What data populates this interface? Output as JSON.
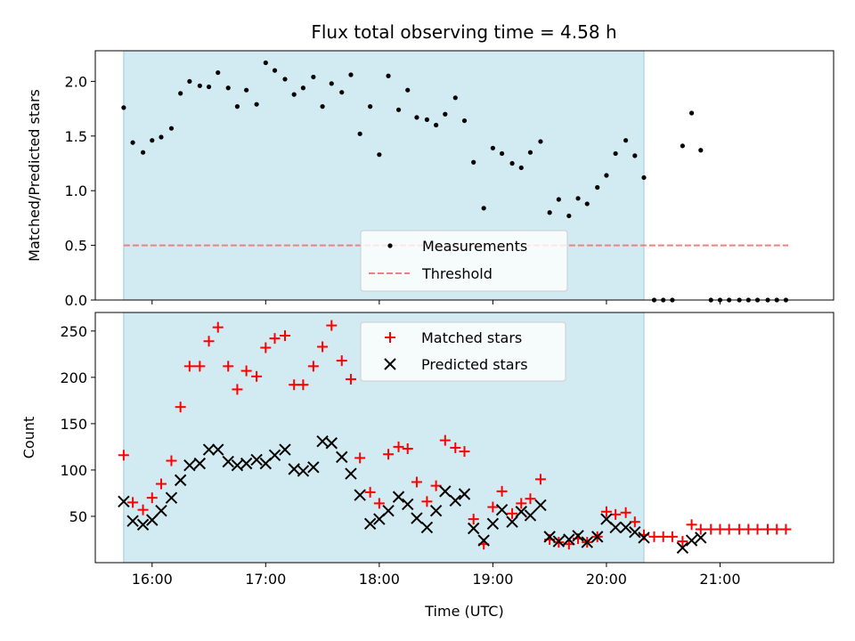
{
  "chart_data": {
    "title": "Flux total observing time = 4.58 h",
    "time_unit": "hours (UTC)",
    "observing_window": {
      "start": 15.75,
      "end": 20.33,
      "color": "#add8e6"
    },
    "top": {
      "type": "scatter",
      "ylabel": "Matched/Predicted stars",
      "ylim": [
        0,
        2.28
      ],
      "yticks": [
        "0.0",
        "0.5",
        "1.0",
        "1.5",
        "2.0"
      ],
      "ytick_values": [
        0,
        0.5,
        1.0,
        1.5,
        2.0
      ],
      "threshold": {
        "name": "Threshold",
        "value": 0.5,
        "x_range": [
          15.75,
          21.6
        ],
        "color": "#f08080"
      },
      "legend": {
        "placement": "lower center",
        "entries": [
          "Measurements",
          "Threshold"
        ]
      },
      "series": [
        {
          "name": "Measurements",
          "color": "#000000",
          "x": [
            15.75,
            15.83,
            15.92,
            16.0,
            16.08,
            16.17,
            16.25,
            16.33,
            16.42,
            16.5,
            16.58,
            16.67,
            16.75,
            16.83,
            16.92,
            17.0,
            17.08,
            17.17,
            17.25,
            17.33,
            17.42,
            17.5,
            17.58,
            17.67,
            17.75,
            17.83,
            17.92,
            18.0,
            18.08,
            18.17,
            18.25,
            18.33,
            18.42,
            18.5,
            18.58,
            18.67,
            18.75,
            18.83,
            18.92,
            19.0,
            19.08,
            19.17,
            19.25,
            19.33,
            19.42,
            19.5,
            19.58,
            19.67,
            19.75,
            19.83,
            19.92,
            20.0,
            20.08,
            20.17,
            20.25,
            20.33,
            20.42,
            20.5,
            20.58,
            20.67,
            20.75,
            20.83,
            20.92,
            21.0,
            21.08,
            21.17,
            21.25,
            21.33,
            21.42,
            21.5,
            21.58
          ],
          "y": [
            1.76,
            1.44,
            1.35,
            1.46,
            1.49,
            1.57,
            1.89,
            2.0,
            1.96,
            1.95,
            2.08,
            1.94,
            1.77,
            1.92,
            1.79,
            2.17,
            2.1,
            2.02,
            1.88,
            1.94,
            2.04,
            1.77,
            1.98,
            1.9,
            2.06,
            1.52,
            1.77,
            1.33,
            2.05,
            1.74,
            1.92,
            1.67,
            1.65,
            1.6,
            1.7,
            1.85,
            1.64,
            1.26,
            0.84,
            1.39,
            1.34,
            1.25,
            1.21,
            1.35,
            1.45,
            0.8,
            0.92,
            0.77,
            0.93,
            0.88,
            1.03,
            1.14,
            1.34,
            1.46,
            1.32,
            1.12,
            0,
            0,
            0,
            1.41,
            1.71,
            1.37,
            0,
            0,
            0,
            0,
            0,
            0,
            0,
            0,
            0
          ]
        }
      ]
    },
    "bottom": {
      "type": "scatter",
      "xlabel": "Time (UTC)",
      "ylabel": "Count",
      "xlim": [
        15.5,
        22.0
      ],
      "ylim": [
        0,
        270
      ],
      "xticks": [
        "16:00",
        "17:00",
        "18:00",
        "19:00",
        "20:00",
        "21:00"
      ],
      "xtick_values": [
        16,
        17,
        18,
        19,
        20,
        21
      ],
      "yticks": [
        "50",
        "100",
        "150",
        "200",
        "250"
      ],
      "ytick_values": [
        50,
        100,
        150,
        200,
        250
      ],
      "legend": {
        "placement": "upper center",
        "entries": [
          "Matched stars",
          "Predicted stars"
        ]
      },
      "series": [
        {
          "name": "Matched stars",
          "marker": "plus",
          "color": "#ff0000",
          "x": [
            15.75,
            15.83,
            15.92,
            16.0,
            16.08,
            16.17,
            16.25,
            16.33,
            16.42,
            16.5,
            16.58,
            16.67,
            16.75,
            16.83,
            16.92,
            17.0,
            17.08,
            17.17,
            17.25,
            17.33,
            17.42,
            17.5,
            17.58,
            17.67,
            17.75,
            17.83,
            17.92,
            18.0,
            18.08,
            18.17,
            18.25,
            18.33,
            18.42,
            18.5,
            18.58,
            18.67,
            18.75,
            18.83,
            18.92,
            19.0,
            19.08,
            19.17,
            19.25,
            19.33,
            19.42,
            19.5,
            19.58,
            19.67,
            19.75,
            19.83,
            19.92,
            20.0,
            20.08,
            20.17,
            20.25,
            20.33,
            20.42,
            20.5,
            20.58,
            20.67,
            20.75,
            20.83,
            20.92,
            21.0,
            21.08,
            21.17,
            21.25,
            21.33,
            21.42,
            21.5,
            21.58
          ],
          "y": [
            116,
            65,
            57,
            70,
            85,
            110,
            168,
            212,
            212,
            239,
            254,
            212,
            187,
            207,
            201,
            232,
            242,
            245,
            192,
            192,
            212,
            233,
            256,
            218,
            198,
            113,
            76,
            64,
            117,
            125,
            123,
            87,
            66,
            83,
            132,
            124,
            120,
            47,
            20,
            60,
            77,
            53,
            64,
            69,
            90,
            25,
            22,
            20,
            26,
            22,
            28,
            55,
            52,
            54,
            44,
            30,
            28,
            28,
            28,
            23,
            41,
            36,
            36,
            36,
            36,
            36,
            36,
            36,
            36,
            36,
            36
          ]
        },
        {
          "name": "Predicted stars",
          "marker": "x",
          "color": "#000000",
          "x": [
            15.75,
            15.83,
            15.92,
            16.0,
            16.08,
            16.17,
            16.25,
            16.33,
            16.42,
            16.5,
            16.58,
            16.67,
            16.75,
            16.83,
            16.92,
            17.0,
            17.08,
            17.17,
            17.25,
            17.33,
            17.42,
            17.5,
            17.58,
            17.67,
            17.75,
            17.83,
            17.92,
            18.0,
            18.08,
            18.17,
            18.25,
            18.33,
            18.42,
            18.5,
            18.58,
            18.67,
            18.75,
            18.83,
            18.92,
            19.0,
            19.08,
            19.17,
            19.25,
            19.33,
            19.42,
            19.5,
            19.58,
            19.67,
            19.75,
            19.83,
            19.92,
            20.0,
            20.08,
            20.17,
            20.25,
            20.33,
            20.67,
            20.75,
            20.83
          ],
          "y": [
            66,
            45,
            41,
            46,
            56,
            70,
            89,
            105,
            107,
            122,
            122,
            109,
            105,
            107,
            111,
            107,
            116,
            122,
            101,
            99,
            103,
            131,
            129,
            114,
            96,
            73,
            42,
            47,
            56,
            71,
            63,
            48,
            38,
            56,
            77,
            67,
            74,
            37,
            24,
            42,
            57,
            44,
            55,
            51,
            62,
            28,
            23,
            25,
            29,
            22,
            28,
            47,
            38,
            38,
            33,
            27,
            16,
            24,
            27
          ]
        }
      ]
    }
  }
}
